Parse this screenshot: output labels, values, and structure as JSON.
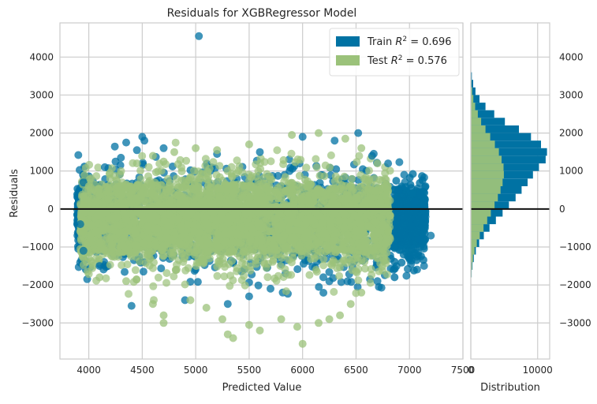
{
  "chart_data": {
    "type": "scatter",
    "title": "Residuals for XGBRegressor Model",
    "xlabel": "Predicted Value",
    "ylabel": "Residuals",
    "xlim": [
      3730,
      7500
    ],
    "ylim": [
      -3950,
      4900
    ],
    "x_ticks": [
      4000,
      4500,
      5000,
      5500,
      6000,
      6500,
      7000,
      7500
    ],
    "y_ticks": [
      -3000,
      -2000,
      -1000,
      0,
      1000,
      2000,
      3000,
      4000
    ],
    "grid": true,
    "zero_line": 0,
    "legend_position": "top-right",
    "series": [
      {
        "name": "Train",
        "legend_prefix": "Train",
        "r2_label": "= 0.696",
        "color": "#0072a3",
        "points": [
          [
            5030,
            4550
          ],
          [
            4350,
            1750
          ],
          [
            4500,
            1900
          ],
          [
            4520,
            1800
          ],
          [
            4450,
            1550
          ],
          [
            4300,
            1350
          ],
          [
            4250,
            1250
          ],
          [
            4150,
            1100
          ],
          [
            6000,
            1900
          ],
          [
            6300,
            1800
          ],
          [
            6520,
            2000
          ],
          [
            6650,
            1400
          ],
          [
            6800,
            1200
          ],
          [
            6950,
            900
          ],
          [
            7100,
            400
          ],
          [
            7150,
            -200
          ],
          [
            7100,
            -800
          ],
          [
            7000,
            -1300
          ],
          [
            6700,
            -1900
          ],
          [
            4400,
            -2550
          ],
          [
            4900,
            -2400
          ],
          [
            5300,
            -2500
          ],
          [
            5500,
            -2300
          ],
          [
            5700,
            -2100
          ],
          [
            3950,
            700
          ],
          [
            3920,
            -400
          ],
          [
            3950,
            -1100
          ],
          [
            4100,
            -1500
          ],
          [
            6850,
            -1600
          ],
          [
            7200,
            -700
          ],
          [
            7050,
            200
          ],
          [
            6900,
            500
          ],
          [
            4700,
            1600
          ],
          [
            5200,
            1450
          ],
          [
            5600,
            1500
          ]
        ]
      },
      {
        "name": "Test",
        "legend_prefix": "Test",
        "r2_label": "= 0.576",
        "color": "#9bc27a",
        "points": [
          [
            5900,
            1950
          ],
          [
            6150,
            2000
          ],
          [
            6400,
            1850
          ],
          [
            5000,
            1600
          ],
          [
            4800,
            1500
          ],
          [
            4600,
            1400
          ],
          [
            4200,
            800
          ],
          [
            4000,
            600
          ],
          [
            3950,
            100
          ],
          [
            3950,
            -600
          ],
          [
            4000,
            -1300
          ],
          [
            4100,
            -1800
          ],
          [
            4350,
            -1900
          ],
          [
            4600,
            -2500
          ],
          [
            4700,
            -2800
          ],
          [
            4700,
            -3000
          ],
          [
            4950,
            -2400
          ],
          [
            5100,
            -2600
          ],
          [
            5250,
            -2900
          ],
          [
            5500,
            -3050
          ],
          [
            5300,
            -3300
          ],
          [
            5350,
            -3400
          ],
          [
            5600,
            -3200
          ],
          [
            5800,
            -2900
          ],
          [
            5950,
            -3100
          ],
          [
            6000,
            -3550
          ],
          [
            6150,
            -3000
          ],
          [
            6250,
            -2900
          ],
          [
            6350,
            -2800
          ],
          [
            6450,
            -2500
          ],
          [
            6550,
            -2200
          ],
          [
            6700,
            -1300
          ],
          [
            6800,
            -600
          ],
          [
            6800,
            200
          ],
          [
            6700,
            1200
          ],
          [
            6550,
            1600
          ],
          [
            5500,
            1700
          ],
          [
            5200,
            1550
          ],
          [
            4700,
            1250
          ],
          [
            4450,
            1200
          ]
        ]
      }
    ],
    "distribution": {
      "xlabel": "Distribution",
      "x_ticks": [
        0,
        10000
      ],
      "xlim": [
        0,
        11800
      ],
      "bin_width": 200,
      "bins_start": -2000,
      "train_counts": [
        60,
        130,
        250,
        450,
        750,
        1250,
        1950,
        2800,
        3750,
        4750,
        5700,
        6700,
        7600,
        8500,
        9300,
        10200,
        11200,
        11400,
        10500,
        9000,
        7200,
        5100,
        3500,
        2200,
        1300,
        700,
        350,
        150
      ],
      "test_counts": [
        50,
        100,
        180,
        330,
        560,
        900,
        1350,
        1900,
        2450,
        3000,
        3550,
        4050,
        4450,
        4750,
        4950,
        4900,
        4600,
        4200,
        3600,
        2900,
        2200,
        1550,
        1050,
        650,
        380,
        200,
        100,
        40
      ]
    }
  }
}
